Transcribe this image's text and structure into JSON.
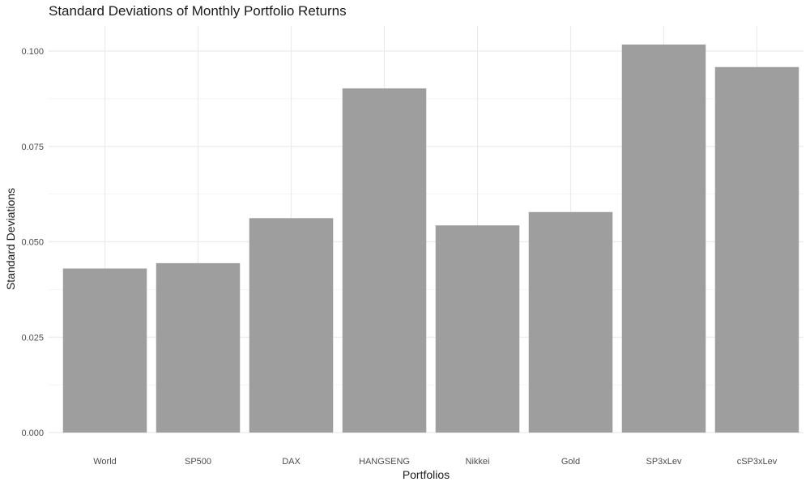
{
  "chart_data": {
    "type": "bar",
    "title": "Standard Deviations of Monthly Portfolio Returns",
    "xlabel": "Portfolios",
    "ylabel": "Standard Deviations",
    "categories": [
      "World",
      "SP500",
      "DAX",
      "HANGSENG",
      "Nikkei",
      "Gold",
      "SP3xLev",
      "cSP3xLev"
    ],
    "values": [
      0.043,
      0.0444,
      0.0562,
      0.0902,
      0.0543,
      0.0578,
      0.1017,
      0.0958
    ],
    "ylim": [
      0,
      0.107
    ],
    "yticks": [
      0.0,
      0.025,
      0.05,
      0.075,
      0.1
    ],
    "ytick_labels": [
      "0.000",
      "0.025",
      "0.050",
      "0.075",
      "0.100"
    ],
    "grid": true,
    "bar_color": "#9e9e9e",
    "grid_color": "#ebebeb"
  }
}
